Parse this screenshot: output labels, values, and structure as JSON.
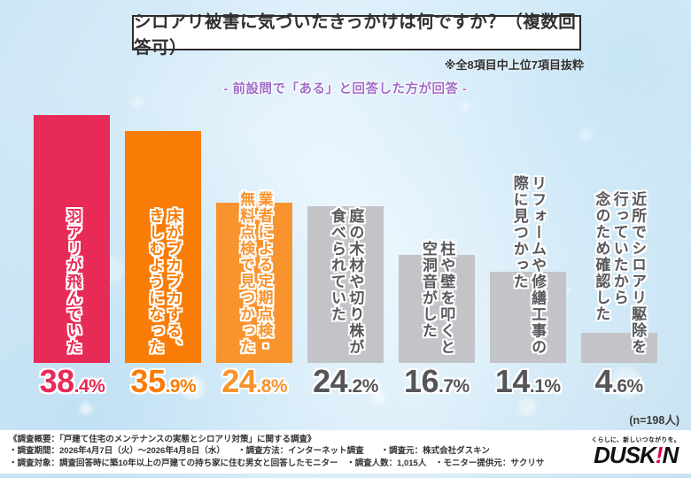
{
  "header": {
    "title": "シロアリ被害に気づいたきっかけは何ですか？（複数回答可）",
    "note": "※全8項目中上位7項目抜粋",
    "subtitle": "- 前設問で「ある」と回答した方が回答 -"
  },
  "chart_data": {
    "type": "bar",
    "title": "シロアリ被害に気づいたきっかけは何ですか？（複数回答可）",
    "subtitle": "前設問で「ある」と回答した方が回答",
    "note": "※全8項目中上位7項目抜粋",
    "unit": "%",
    "ylim": [
      0,
      40
    ],
    "grid": false,
    "legend": false,
    "n_label": "(n=198人)",
    "categories": [
      "羽アリが飛んでいた",
      "床がブカブカする、きしむようになった",
      "業者による定期点検・無料点検で見つかった",
      "庭の木材や切り株が食べられていた",
      "柱や壁を叩くと空洞音がした",
      "リフォームや修繕工事の際に見つかった",
      "近所でシロアリ駆除を行っていたから念のため確認した"
    ],
    "label_lines": [
      [
        "羽アリが飛んでいた"
      ],
      [
        "床がブカブカする、",
        "きしむようになった"
      ],
      [
        "業者による定期点検・",
        "無料点検で見つかった"
      ],
      [
        "庭の木材や切り株が",
        "食べられていた"
      ],
      [
        "柱や壁を叩くと",
        "空洞音がした"
      ],
      [
        "リフォームや修繕工事の",
        "際に見つかった"
      ],
      [
        "近所でシロアリ駆除を",
        "行っていたから",
        "念のため確認した"
      ]
    ],
    "values": [
      38.4,
      35.9,
      24.8,
      24.2,
      16.7,
      14.1,
      4.6
    ],
    "bar_colors": [
      "#e72a56",
      "#f87c06",
      "#f9932e",
      "#c3c4c8",
      "#c3c4c8",
      "#c3c4c8",
      "#c3c4c8"
    ],
    "label_colors": [
      "#e72a56",
      "#f87c06",
      "#f9932e",
      "#58585c",
      "#58585c",
      "#58585c",
      "#58585c"
    ],
    "value_colors": [
      "#e72a56",
      "#f87c06",
      "#f9932e",
      "#55555a",
      "#55555a",
      "#55555a",
      "#55555a"
    ]
  },
  "footer": {
    "lines": [
      "《調査概要：「戸建て住宅のメンテナンスの実態とシロアリ対策」に関する調査》",
      "・調査期間：2026年4月7日（火）～2026年4月8日（水）　　・調査方法：インターネット調査　　・調査元：株式会社ダスキン",
      "・調査対象：調査回答時に築10年以上の戸建ての持ち家に住む男女と回答したモニター　・調査人数：1,015人　・モニター提供元：サクリサ"
    ],
    "logo": {
      "tagline": "くらしに、新しいつながりを。",
      "part1": "DUSK",
      "accent": "!",
      "part2": "N"
    }
  }
}
